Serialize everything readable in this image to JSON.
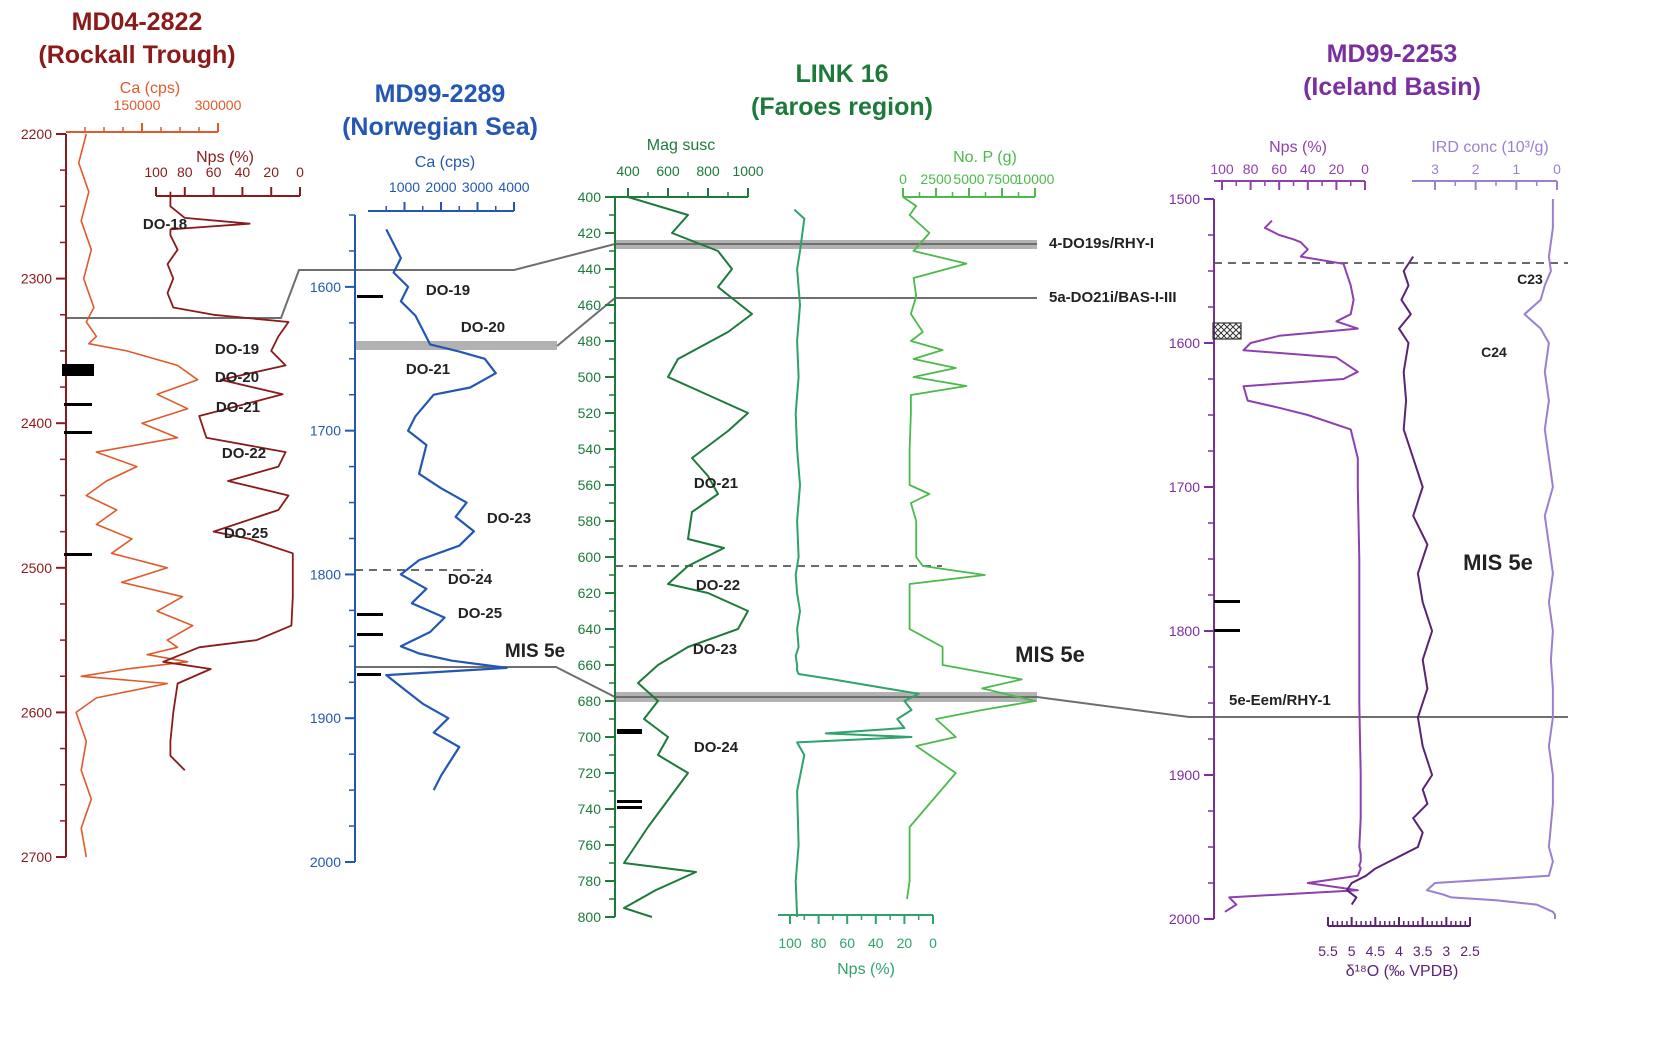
{
  "chart_data": [
    {
      "type": "line",
      "title": "MD04-2822",
      "subtitle": "(Rockall Trough)",
      "color": "#8b1a1a",
      "depth_axis": {
        "ylim": [
          2200,
          2700
        ],
        "ticks": [
          2200,
          2300,
          2400,
          2500,
          2600,
          2700
        ]
      },
      "axes": [
        {
          "label": "Ca (cps)",
          "color": "#e05a2b",
          "ticks": [
            "150000",
            "300000"
          ]
        },
        {
          "label": "Nps (%)",
          "color": "#8b1a1a",
          "ticks": [
            "100",
            "80",
            "60",
            "40",
            "20",
            "0"
          ],
          "reversed": true
        }
      ],
      "series": [
        {
          "name": "Ca (cps)",
          "color": "#e05a2b",
          "x": [
            40000,
            25000,
            45000,
            30000,
            50000,
            35000,
            55000,
            40000,
            60000,
            45000,
            120000,
            220000,
            260000,
            180000,
            240000,
            150000,
            220000,
            60000,
            140000,
            80000,
            40000,
            100000,
            60000,
            130000,
            90000,
            200000,
            110000,
            230000,
            180000,
            250000,
            200000,
            220000,
            160000,
            240000,
            120000,
            30000,
            200000,
            60000,
            20000,
            40000,
            30000,
            50000,
            30000,
            40000
          ],
          "y": [
            2200,
            2220,
            2240,
            2260,
            2280,
            2300,
            2320,
            2330,
            2340,
            2345,
            2350,
            2360,
            2370,
            2380,
            2390,
            2400,
            2410,
            2420,
            2430,
            2440,
            2450,
            2460,
            2470,
            2480,
            2490,
            2500,
            2510,
            2520,
            2530,
            2540,
            2550,
            2555,
            2560,
            2565,
            2570,
            2575,
            2580,
            2590,
            2600,
            2620,
            2640,
            2660,
            2680,
            2700
          ]
        },
        {
          "name": "Nps (%)",
          "color": "#8b1a1a",
          "x": [
            90,
            90,
            80,
            35,
            90,
            90,
            85,
            92,
            88,
            92,
            88,
            60,
            8,
            15,
            20,
            10,
            55,
            12,
            70,
            65,
            10,
            15,
            50,
            8,
            15,
            60,
            35,
            5,
            5,
            5,
            6,
            30,
            70,
            95,
            62,
            85,
            88,
            90,
            90,
            80
          ],
          "y": [
            2240,
            2250,
            2258,
            2262,
            2266,
            2270,
            2280,
            2290,
            2300,
            2310,
            2320,
            2325,
            2330,
            2340,
            2350,
            2360,
            2370,
            2380,
            2395,
            2410,
            2420,
            2430,
            2440,
            2450,
            2460,
            2475,
            2480,
            2490,
            2500,
            2520,
            2540,
            2550,
            2555,
            2565,
            2570,
            2580,
            2600,
            2620,
            2630,
            2640
          ]
        }
      ],
      "annotations": [
        "DO-18",
        "DO-19",
        "DO-20",
        "DO-21",
        "DO-22",
        "DO-25"
      ]
    },
    {
      "type": "line",
      "title": "MD99-2289",
      "subtitle": "(Norwegian Sea)",
      "color": "#2457b3",
      "depth_axis": {
        "ylim": [
          1550,
          2000
        ],
        "ticks": [
          1600,
          1700,
          1800,
          1900,
          2000
        ]
      },
      "axes": [
        {
          "label": "Ca (cps)",
          "color": "#2457b3",
          "ticks": [
            "1000",
            "2000",
            "3000",
            "4000"
          ]
        }
      ],
      "series": [
        {
          "name": "Ca (cps)",
          "color": "#2457b3",
          "x": [
            500,
            900,
            700,
            1100,
            900,
            1300,
            1500,
            1700,
            2500,
            3200,
            3500,
            2800,
            1800,
            1300,
            1100,
            1600,
            1400,
            2000,
            2700,
            2400,
            2900,
            2500,
            1400,
            900,
            1600,
            1200,
            2100,
            1700,
            900,
            1400,
            2300,
            3200,
            3800,
            500,
            1000,
            1500,
            2200,
            1800,
            2500,
            2000,
            1800
          ],
          "y": [
            1560,
            1580,
            1590,
            1600,
            1610,
            1620,
            1630,
            1640,
            1645,
            1650,
            1660,
            1670,
            1675,
            1690,
            1700,
            1710,
            1730,
            1740,
            1750,
            1760,
            1770,
            1780,
            1790,
            1800,
            1810,
            1820,
            1830,
            1840,
            1850,
            1855,
            1860,
            1863,
            1865,
            1870,
            1880,
            1890,
            1900,
            1910,
            1920,
            1940,
            1950
          ]
        }
      ],
      "annotations": [
        "DO-19",
        "DO-20",
        "DO-21",
        "DO-23",
        "DO-24",
        "DO-25",
        "MIS 5e"
      ]
    },
    {
      "type": "line",
      "title": "LINK 16",
      "subtitle": "(Faroes region)",
      "color": "#1e7a3a",
      "depth_axis": {
        "ylim": [
          400,
          800
        ],
        "ticks": [
          400,
          420,
          440,
          460,
          480,
          500,
          520,
          540,
          560,
          580,
          600,
          620,
          640,
          660,
          680,
          700,
          720,
          740,
          760,
          780,
          800
        ]
      },
      "axes": [
        {
          "label": "Mag susc",
          "color": "#1e7a3a",
          "ticks": [
            "400",
            "600",
            "800",
            "1000"
          ]
        },
        {
          "label": "No. P (g)",
          "color": "#4cb94c",
          "ticks": [
            "0",
            "2500",
            "5000",
            "7500",
            "10000"
          ]
        },
        {
          "label": "Nps (%)",
          "color": "#2fa36b",
          "ticks": [
            "100",
            "80",
            "60",
            "40",
            "20",
            "0"
          ],
          "reversed": true
        }
      ],
      "series": [
        {
          "name": "Mag susc",
          "color": "#1e7a3a",
          "x": [
            400,
            700,
            620,
            850,
            920,
            850,
            1020,
            900,
            650,
            600,
            800,
            1000,
            900,
            720,
            800,
            850,
            720,
            700,
            880,
            700,
            650,
            600,
            800,
            1000,
            950,
            700,
            550,
            450,
            550,
            480,
            600,
            550,
            700,
            600,
            500,
            380,
            740,
            540,
            380,
            520
          ],
          "y": [
            400,
            410,
            420,
            430,
            440,
            450,
            465,
            475,
            490,
            500,
            510,
            520,
            530,
            545,
            555,
            565,
            575,
            590,
            595,
            605,
            610,
            615,
            620,
            630,
            640,
            650,
            660,
            670,
            680,
            690,
            700,
            710,
            720,
            735,
            750,
            770,
            775,
            785,
            795,
            800
          ]
        },
        {
          "name": "Nps (%)",
          "color": "#2fa36b",
          "x": [
            97,
            90,
            93,
            95,
            93,
            95,
            94,
            96,
            95,
            93,
            95,
            94,
            96,
            95,
            93,
            95,
            94,
            96,
            95,
            95,
            94,
            70,
            40,
            10,
            20,
            15,
            25,
            20,
            75,
            15,
            95,
            90,
            95,
            94,
            96,
            95
          ],
          "y": [
            407,
            412,
            430,
            440,
            460,
            480,
            500,
            520,
            540,
            560,
            580,
            600,
            610,
            620,
            630,
            640,
            650,
            655,
            660,
            663,
            665,
            668,
            672,
            676,
            680,
            685,
            690,
            695,
            698,
            700,
            703,
            710,
            730,
            760,
            780,
            800
          ]
        },
        {
          "name": "No. P (g)",
          "color": "#4cb94c",
          "x": [
            0,
            1000,
            500,
            2000,
            800,
            4800,
            800,
            1000,
            600,
            1500,
            600,
            3000,
            800,
            4000,
            800,
            4800,
            600,
            600,
            500,
            500,
            2000,
            600,
            1000,
            1000,
            1500,
            6200,
            500,
            500,
            3000,
            3000,
            9000,
            6000,
            10000,
            6000,
            2500,
            4000,
            1000,
            4000,
            500,
            500,
            500,
            300
          ],
          "y": [
            400,
            405,
            410,
            420,
            430,
            437,
            445,
            455,
            465,
            475,
            480,
            485,
            490,
            495,
            500,
            505,
            510,
            520,
            540,
            560,
            565,
            570,
            580,
            600,
            605,
            610,
            615,
            640,
            650,
            660,
            668,
            673,
            680,
            685,
            690,
            700,
            705,
            720,
            750,
            770,
            780,
            790
          ]
        }
      ],
      "annotations": [
        "DO-21",
        "DO-22",
        "DO-23",
        "DO-24",
        "MIS 5e"
      ]
    },
    {
      "type": "line",
      "title": "MD99-2253",
      "subtitle": "(Iceland Basin)",
      "color": "#7b2f9e",
      "depth_axis": {
        "ylim": [
          1500,
          2000
        ],
        "ticks": [
          1500,
          1600,
          1700,
          1800,
          1900,
          2000
        ]
      },
      "axes": [
        {
          "label": "Nps (%)",
          "color": "#8e3fb0",
          "ticks": [
            "100",
            "80",
            "60",
            "40",
            "20",
            "0"
          ],
          "reversed": true
        },
        {
          "label": "IRD conc (10³/g)",
          "color": "#9b7fd0",
          "ticks": [
            "3",
            "2",
            "1",
            "0"
          ],
          "reversed": true
        },
        {
          "label": "δ¹⁸O (‰ VPDB)",
          "color": "#5a2475",
          "ticks": [
            "5.5",
            "5",
            "4.5",
            "4",
            "3.5",
            "3",
            "2.5"
          ],
          "reversed": true
        }
      ],
      "series": [
        {
          "name": "Nps (%)",
          "color": "#8e3fb0",
          "x": [
            65,
            70,
            60,
            50,
            45,
            40,
            45,
            15,
            10,
            8,
            10,
            20,
            5,
            60,
            80,
            85,
            20,
            5,
            15,
            85,
            82,
            60,
            40,
            10,
            5,
            5,
            4,
            4,
            4,
            3,
            3,
            4,
            3,
            3,
            4,
            3,
            5,
            40,
            5,
            95,
            90,
            98
          ],
          "y": [
            1515,
            1520,
            1525,
            1528,
            1530,
            1535,
            1540,
            1545,
            1560,
            1570,
            1580,
            1585,
            1590,
            1595,
            1600,
            1605,
            1610,
            1620,
            1625,
            1630,
            1640,
            1645,
            1650,
            1660,
            1680,
            1700,
            1750,
            1800,
            1850,
            1900,
            1930,
            1950,
            1955,
            1960,
            1963,
            1965,
            1970,
            1975,
            1980,
            1985,
            1990,
            1995
          ]
        },
        {
          "name": "δ¹⁸O (‰ VPDB)",
          "color": "#5a2475",
          "x": [
            3.7,
            3.9,
            3.8,
            3.95,
            3.75,
            4.0,
            3.8,
            3.9,
            3.85,
            3.9,
            3.7,
            3.5,
            3.7,
            3.4,
            3.6,
            3.5,
            3.3,
            3.5,
            3.4,
            3.6,
            3.5,
            3.3,
            3.5,
            3.4,
            3.7,
            3.5,
            3.6,
            3.9,
            4.2,
            4.5,
            4.7,
            5.0,
            5.1,
            4.9,
            5.0
          ],
          "y": [
            1540,
            1550,
            1560,
            1570,
            1580,
            1590,
            1600,
            1620,
            1640,
            1660,
            1680,
            1700,
            1720,
            1740,
            1760,
            1780,
            1800,
            1820,
            1840,
            1860,
            1880,
            1900,
            1910,
            1920,
            1930,
            1940,
            1950,
            1955,
            1960,
            1965,
            1970,
            1975,
            1980,
            1985,
            1990
          ]
        },
        {
          "name": "IRD conc (10³/g)",
          "color": "#9b7fd0",
          "x": [
            0.1,
            0.1,
            0.2,
            0.15,
            0.3,
            0.4,
            0.8,
            0.4,
            0.2,
            0.3,
            0.2,
            0.3,
            0.2,
            0.1,
            0.3,
            0.2,
            0.1,
            0.2,
            0.1,
            0.15,
            0.1,
            0.1,
            0.2,
            0.1,
            0.1,
            0.2,
            0.1,
            0.2,
            3.0,
            3.2,
            2.8,
            2.6,
            1.5,
            0.5,
            0.1,
            0.05,
            0.05
          ],
          "y": [
            1500,
            1520,
            1540,
            1550,
            1560,
            1570,
            1580,
            1590,
            1600,
            1620,
            1640,
            1660,
            1680,
            1700,
            1720,
            1740,
            1760,
            1780,
            1800,
            1820,
            1840,
            1860,
            1880,
            1900,
            1920,
            1950,
            1960,
            1970,
            1975,
            1980,
            1983,
            1985,
            1987,
            1990,
            1995,
            1997,
            2000
          ]
        }
      ],
      "annotations": [
        "C23",
        "C24",
        "MIS 5e"
      ]
    }
  ],
  "tie_lines": [
    "4-DO19s/RHY-I",
    "5a-DO21i/BAS-I-III",
    "5e-Eem/RHY-1"
  ]
}
